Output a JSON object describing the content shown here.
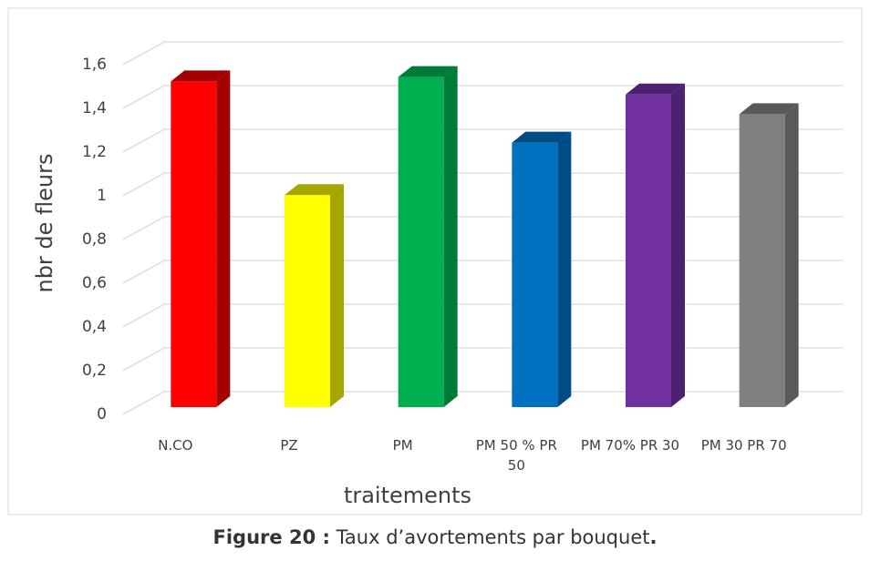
{
  "chart_data": {
    "type": "bar3d",
    "ylabel": "nbr de fleurs",
    "xlabel": "traitements",
    "categories": [
      "N.CO",
      "PZ",
      "PM",
      "PM 50 % PR 50",
      "PM 70% PR 30",
      "PM 30  PR 70"
    ],
    "values": [
      1.49,
      0.97,
      1.51,
      1.21,
      1.43,
      1.34
    ],
    "colors": [
      "#ff0000",
      "#ffff00",
      "#00b050",
      "#0070c0",
      "#7030a0",
      "#7f7f7f"
    ],
    "side_colors": [
      "#a50000",
      "#a6a600",
      "#007a37",
      "#004d86",
      "#4e2170",
      "#595959"
    ],
    "ylim": [
      0,
      1.6
    ],
    "yticks": [
      0,
      {
        "value": 0.2,
        "label": "0,2"
      },
      {
        "value": 0.4,
        "label": "0,4"
      },
      {
        "value": 0.6,
        "label": "0,6"
      },
      {
        "value": 0.8,
        "label": "0,8"
      },
      1,
      {
        "value": 1.2,
        "label": "1,2"
      },
      {
        "value": 1.4,
        "label": "1,4"
      },
      {
        "value": 1.6,
        "label": "1,6"
      }
    ],
    "grid": true
  },
  "caption": {
    "label": "Figure 20 :",
    "text": "Taux d’avortements par bouquet",
    "end": "."
  }
}
